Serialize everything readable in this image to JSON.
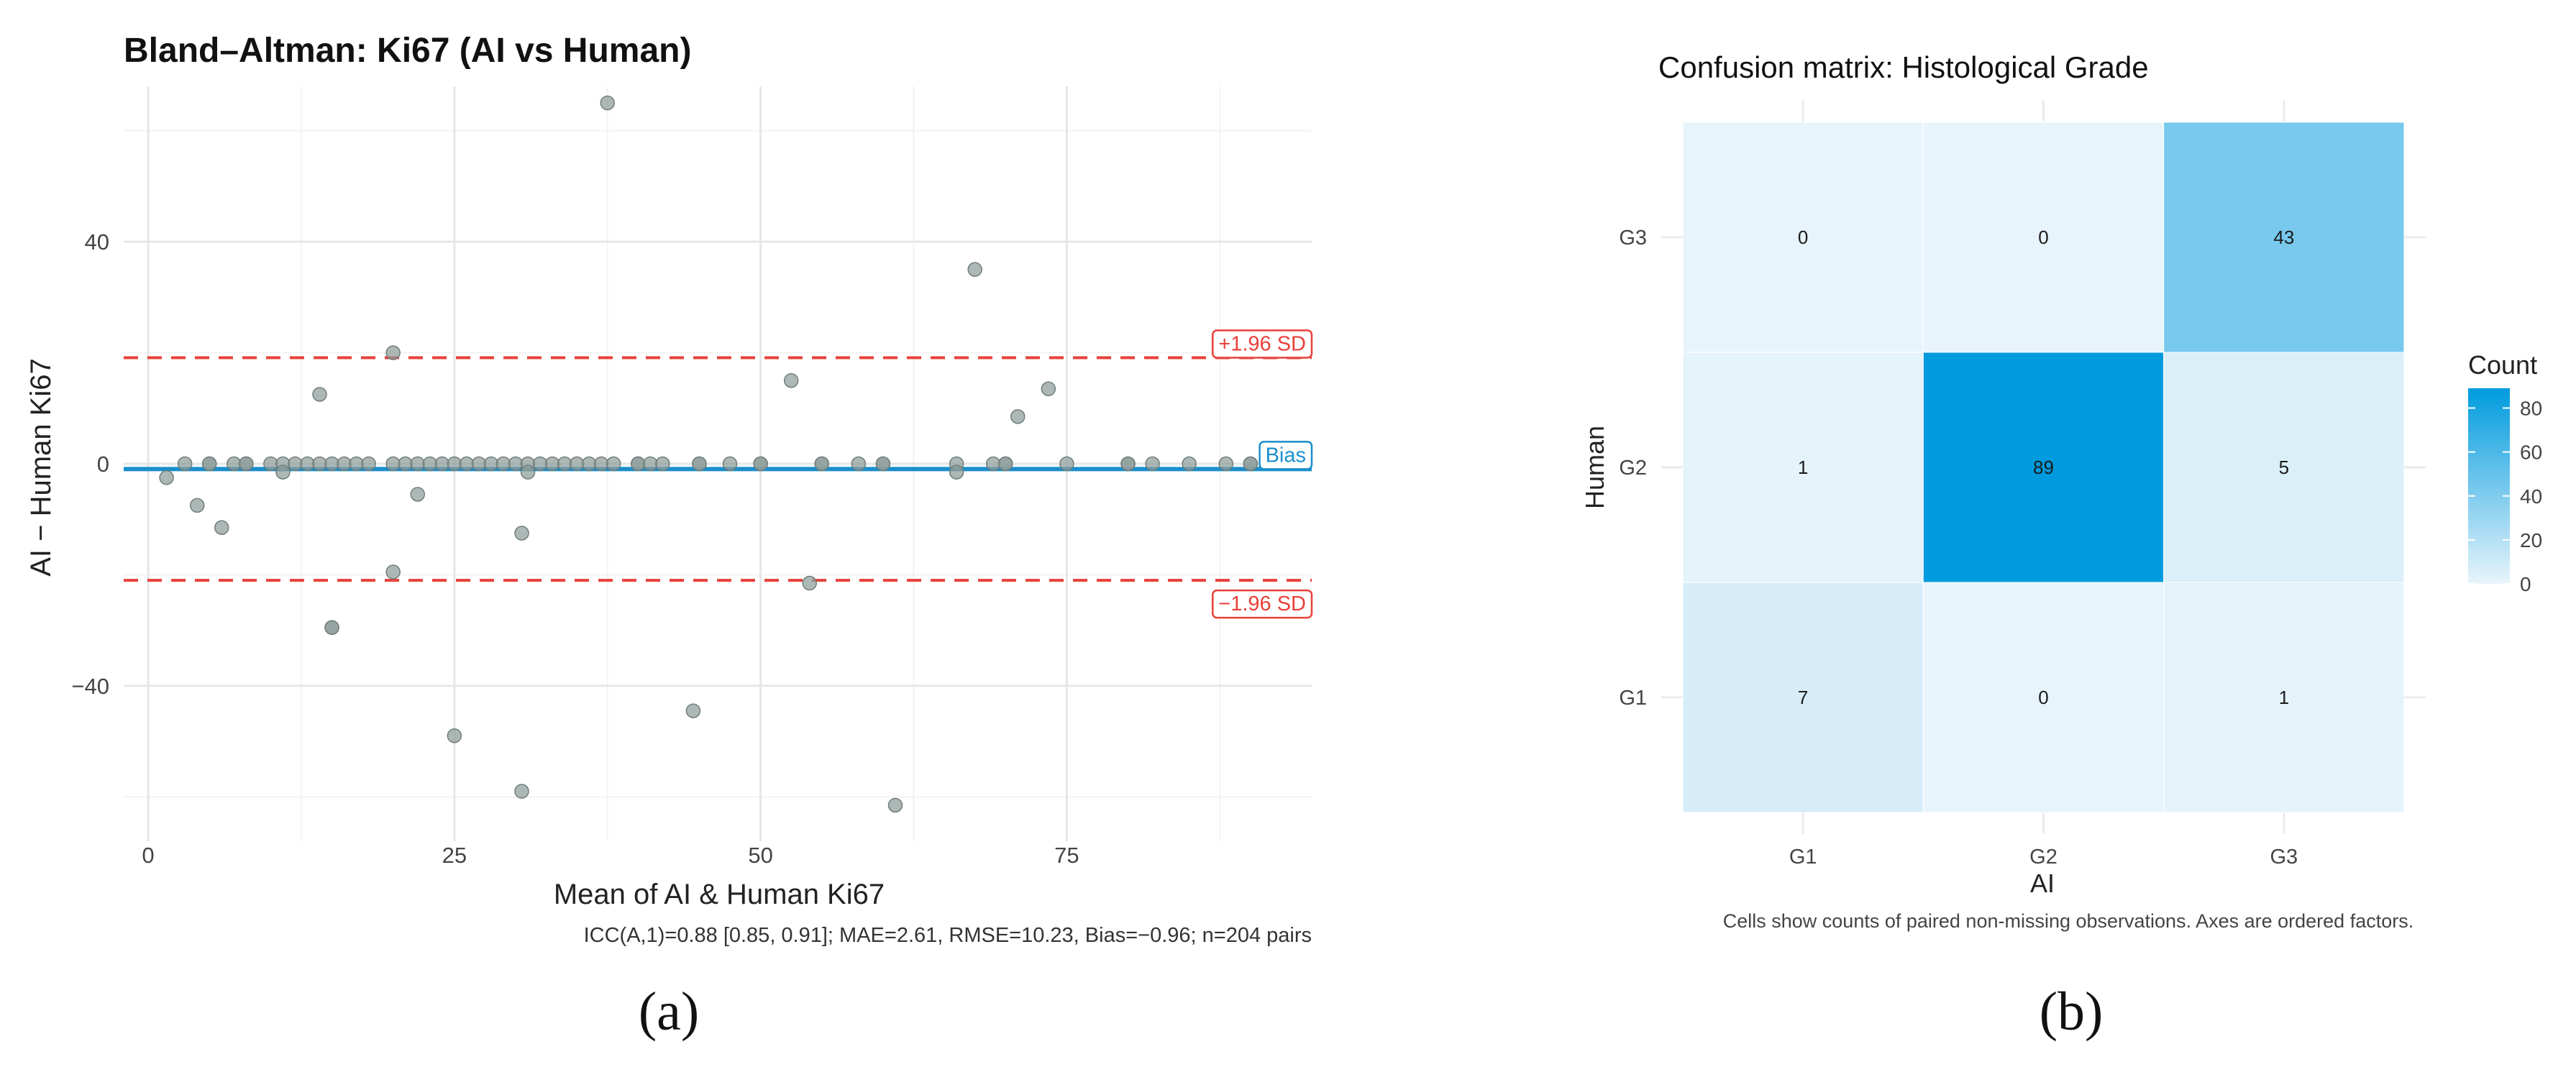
{
  "chart_data": [
    {
      "type": "scatter",
      "title": "Bland–Altman: Ki67 (AI vs Human)",
      "xlabel": "Mean of AI & Human Ki67",
      "ylabel": "AI − Human Ki67",
      "xlim": [
        -2,
        95
      ],
      "ylim": [
        -68,
        68
      ],
      "xticks": [
        0,
        25,
        50,
        75
      ],
      "xtick_labels": [
        "0",
        "25",
        "50",
        "75"
      ],
      "yticks": [
        -40,
        0,
        40
      ],
      "ytick_labels": [
        "−40",
        "0",
        "40"
      ],
      "grid": true,
      "points": [
        [
          1.5,
          -2.5
        ],
        [
          3,
          0
        ],
        [
          4,
          -7.5
        ],
        [
          5,
          0
        ],
        [
          5,
          0
        ],
        [
          6,
          -11.5
        ],
        [
          7,
          0
        ],
        [
          8,
          0
        ],
        [
          8,
          0
        ],
        [
          10,
          0
        ],
        [
          11,
          0
        ],
        [
          11,
          -1.5
        ],
        [
          12,
          0
        ],
        [
          13,
          0
        ],
        [
          14,
          0
        ],
        [
          14,
          12.5
        ],
        [
          15,
          0
        ],
        [
          15,
          -29.5
        ],
        [
          15,
          -29.5
        ],
        [
          16,
          0
        ],
        [
          17,
          0
        ],
        [
          18,
          0
        ],
        [
          20,
          0
        ],
        [
          20,
          20
        ],
        [
          20,
          -19.5
        ],
        [
          21,
          0
        ],
        [
          22,
          0
        ],
        [
          22,
          -5.5
        ],
        [
          23,
          0
        ],
        [
          24,
          0
        ],
        [
          25,
          0
        ],
        [
          25,
          -49
        ],
        [
          26,
          0
        ],
        [
          27,
          0
        ],
        [
          28,
          0
        ],
        [
          29,
          0
        ],
        [
          30,
          0
        ],
        [
          30.5,
          -59
        ],
        [
          30.5,
          -12.5
        ],
        [
          31,
          0
        ],
        [
          31,
          -1.5
        ],
        [
          32,
          0
        ],
        [
          33,
          0
        ],
        [
          34,
          0
        ],
        [
          35,
          0
        ],
        [
          36,
          0
        ],
        [
          37,
          0
        ],
        [
          37.5,
          65
        ],
        [
          38,
          0
        ],
        [
          40,
          0
        ],
        [
          40,
          0
        ],
        [
          41,
          0
        ],
        [
          42,
          0
        ],
        [
          44.5,
          -44.5
        ],
        [
          45,
          0
        ],
        [
          45,
          0
        ],
        [
          47.5,
          0
        ],
        [
          50,
          0
        ],
        [
          50,
          0
        ],
        [
          52.5,
          15
        ],
        [
          54,
          -21.5
        ],
        [
          55,
          0
        ],
        [
          55,
          0
        ],
        [
          58,
          0
        ],
        [
          60,
          0
        ],
        [
          60,
          0
        ],
        [
          61,
          -61.5
        ],
        [
          66,
          0
        ],
        [
          66,
          -1.5
        ],
        [
          67.5,
          35
        ],
        [
          69,
          0
        ],
        [
          70,
          0
        ],
        [
          70,
          0
        ],
        [
          71,
          8.5
        ],
        [
          73.5,
          13.5
        ],
        [
          75,
          0
        ],
        [
          80,
          0
        ],
        [
          80,
          0
        ],
        [
          82,
          0
        ],
        [
          85,
          0
        ],
        [
          88,
          0
        ],
        [
          90,
          0
        ],
        [
          90,
          0
        ]
      ],
      "point_color": "#8E9C9A",
      "lines": [
        {
          "name": "upper_loa",
          "y": 19.1,
          "label": "+1.96 SD",
          "color": "#E8403A",
          "style": "dashed"
        },
        {
          "name": "bias",
          "y": -0.96,
          "label": "Bias",
          "color": "#1A8FCB",
          "style": "solid"
        },
        {
          "name": "lower_loa",
          "y": -21.0,
          "label": "−1.96 SD",
          "color": "#E8403A",
          "style": "dashed"
        }
      ],
      "caption": "ICC(A,1)=0.88 [0.85, 0.91]; MAE=2.61, RMSE=10.23, Bias=−0.96; n=204 pairs",
      "panel_label": "(a)"
    },
    {
      "type": "heatmap",
      "title": "Confusion matrix: Histological Grade",
      "xlabel": "AI",
      "ylabel": "Human",
      "x_categories": [
        "G1",
        "G2",
        "G3"
      ],
      "y_categories": [
        "G1",
        "G2",
        "G3"
      ],
      "values": [
        [
          7,
          0,
          1
        ],
        [
          1,
          89,
          5
        ],
        [
          0,
          0,
          43
        ]
      ],
      "legend": {
        "title": "Count",
        "ticks": [
          0,
          20,
          40,
          60,
          80
        ],
        "tick_labels": [
          "0",
          "20",
          "40",
          "60",
          "80"
        ],
        "range": [
          0,
          89
        ],
        "low_color": "#E8F4FB",
        "high_color": "#009BDE",
        "position": "right"
      },
      "caption": "Cells show counts of paired non-missing observations. Axes are ordered factors.",
      "panel_label": "(b)"
    }
  ]
}
